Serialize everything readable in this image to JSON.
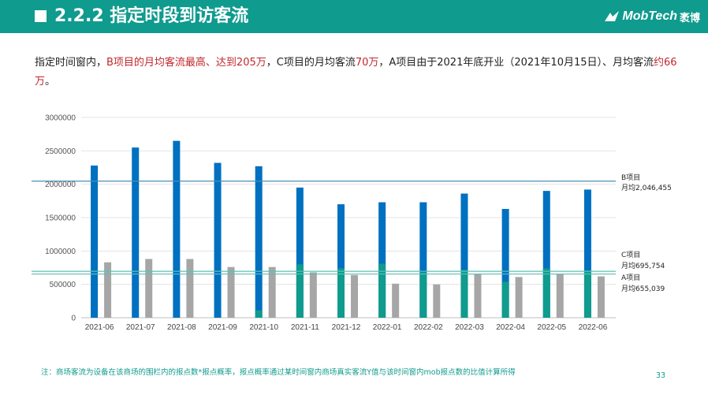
{
  "header": {
    "title": "2.2.2 指定时段到访客流"
  },
  "logo": {
    "name": "MobTech",
    "cn": "袤博"
  },
  "summary": {
    "p1": "指定时间窗内，",
    "p2": "B项目的月均客流最高、达到205万",
    "p3": "，C项目的月均客流",
    "p4": "70万",
    "p5": "，A项目由于2021年底开业（2021年10月15日）、月均客流",
    "p6": "约66万",
    "p7": "。"
  },
  "colors": {
    "blue": "#0070c0",
    "gray": "#a6a6a6",
    "teal": "#0f9b8e",
    "refB": "#4a8fb5",
    "refAC": "#5fbfb4"
  },
  "chart_data": {
    "type": "bar",
    "categories": [
      "2021-06",
      "2021-07",
      "2021-08",
      "2021-09",
      "2021-10",
      "2021-11",
      "2021-12",
      "2022-01",
      "2022-02",
      "2022-03",
      "2022-04",
      "2022-05",
      "2022-06"
    ],
    "yticks": [
      "0",
      "500000",
      "1000000",
      "1500000",
      "2000000",
      "2500000",
      "3000000"
    ],
    "ylim": [
      0,
      3000000
    ],
    "grid": true,
    "series": [
      {
        "key": "B",
        "color": "#0070c0",
        "values": [
          2280000,
          2550000,
          2650000,
          2320000,
          2270000,
          1950000,
          1700000,
          1730000,
          1730000,
          1860000,
          1630000,
          1900000,
          1920000
        ]
      },
      {
        "key": "A",
        "color": "#0f9b8e",
        "values": [
          0,
          0,
          0,
          0,
          110000,
          800000,
          740000,
          810000,
          680000,
          720000,
          540000,
          740000,
          710000
        ]
      },
      {
        "key": "C",
        "color": "#a6a6a6",
        "values": [
          830000,
          880000,
          880000,
          760000,
          760000,
          680000,
          640000,
          510000,
          500000,
          660000,
          610000,
          650000,
          620000
        ]
      }
    ],
    "reference_lines": [
      {
        "key": "B",
        "name": "B项目",
        "label": "月均2,046,455",
        "value": 2046455,
        "color": "#4a8fb5"
      },
      {
        "key": "C",
        "name": "C项目",
        "label": "月均695,754",
        "value": 695754,
        "color": "#5fbfb4"
      },
      {
        "key": "A",
        "name": "A项目",
        "label": "月均655,039",
        "value": 655039,
        "color": "#5fbfb4"
      }
    ]
  },
  "footnote": "注：商场客流为设备在该商场的围栏内的报点数*报点概率，报点概率通过某时间窗内商场真实客流Y值与该时间窗内mob报点数的比值计算所得",
  "page_number": "33"
}
